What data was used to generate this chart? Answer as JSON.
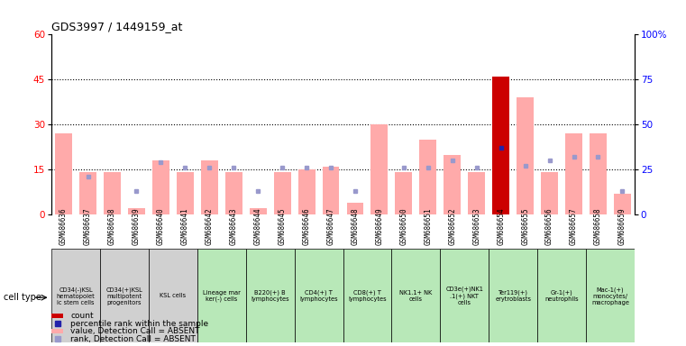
{
  "title": "GDS3997 / 1449159_at",
  "samples": [
    "GSM686636",
    "GSM686637",
    "GSM686638",
    "GSM686639",
    "GSM686640",
    "GSM686641",
    "GSM686642",
    "GSM686643",
    "GSM686644",
    "GSM686645",
    "GSM686646",
    "GSM686647",
    "GSM686648",
    "GSM686649",
    "GSM686650",
    "GSM686651",
    "GSM686652",
    "GSM686653",
    "GSM686654",
    "GSM686655",
    "GSM686656",
    "GSM686657",
    "GSM686658",
    "GSM686659"
  ],
  "pink_values": [
    27,
    14,
    14,
    2,
    18,
    14,
    18,
    14,
    2,
    14,
    15,
    16,
    4,
    30,
    14,
    25,
    20,
    14,
    45,
    39,
    14,
    27,
    27,
    7
  ],
  "count_values": [
    0,
    0,
    0,
    0,
    0,
    0,
    0,
    0,
    0,
    0,
    0,
    0,
    0,
    0,
    0,
    0,
    0,
    0,
    46,
    0,
    0,
    0,
    0,
    0
  ],
  "blue_squares_y": [
    null,
    21,
    null,
    13,
    29,
    26,
    26,
    26,
    13,
    26,
    26,
    26,
    13,
    null,
    26,
    26,
    30,
    26,
    37,
    27,
    30,
    32,
    32,
    13
  ],
  "cell_types": [
    {
      "label": "CD34(-)KSL\nhematopoiet\nic stem cells",
      "color": "#d0d0d0",
      "span": 2
    },
    {
      "label": "CD34(+)KSL\nmultipotent\nprogenitors",
      "color": "#d0d0d0",
      "span": 2
    },
    {
      "label": "KSL cells",
      "color": "#d0d0d0",
      "span": 2
    },
    {
      "label": "Lineage mar\nker(-) cells",
      "color": "#b8e8b8",
      "span": 2
    },
    {
      "label": "B220(+) B\nlymphocytes",
      "color": "#b8e8b8",
      "span": 2
    },
    {
      "label": "CD4(+) T\nlymphocytes",
      "color": "#b8e8b8",
      "span": 2
    },
    {
      "label": "CD8(+) T\nlymphocytes",
      "color": "#b8e8b8",
      "span": 2
    },
    {
      "label": "NK1.1+ NK\ncells",
      "color": "#b8e8b8",
      "span": 2
    },
    {
      "label": "CD3e(+)NK1\n.1(+) NKT\ncells",
      "color": "#b8e8b8",
      "span": 2
    },
    {
      "label": "Ter119(+)\nerytroblasts",
      "color": "#b8e8b8",
      "span": 2
    },
    {
      "label": "Gr-1(+)\nneutrophils",
      "color": "#b8e8b8",
      "span": 2
    },
    {
      "label": "Mac-1(+)\nmonocytes/\nmacrophage",
      "color": "#b8e8b8",
      "span": 2
    }
  ],
  "ylim_left": [
    0,
    60
  ],
  "ylim_right": [
    0,
    100
  ],
  "yticks_left": [
    0,
    15,
    30,
    45,
    60
  ],
  "yticks_right": [
    0,
    25,
    50,
    75,
    100
  ],
  "ytick_labels_right": [
    "0",
    "25",
    "50",
    "75",
    "100%"
  ],
  "pink_color": "#ffaaaa",
  "red_color": "#cc0000",
  "blue_color": "#9999cc",
  "dark_blue_color": "#2222aa",
  "bg_color": "#ffffff"
}
